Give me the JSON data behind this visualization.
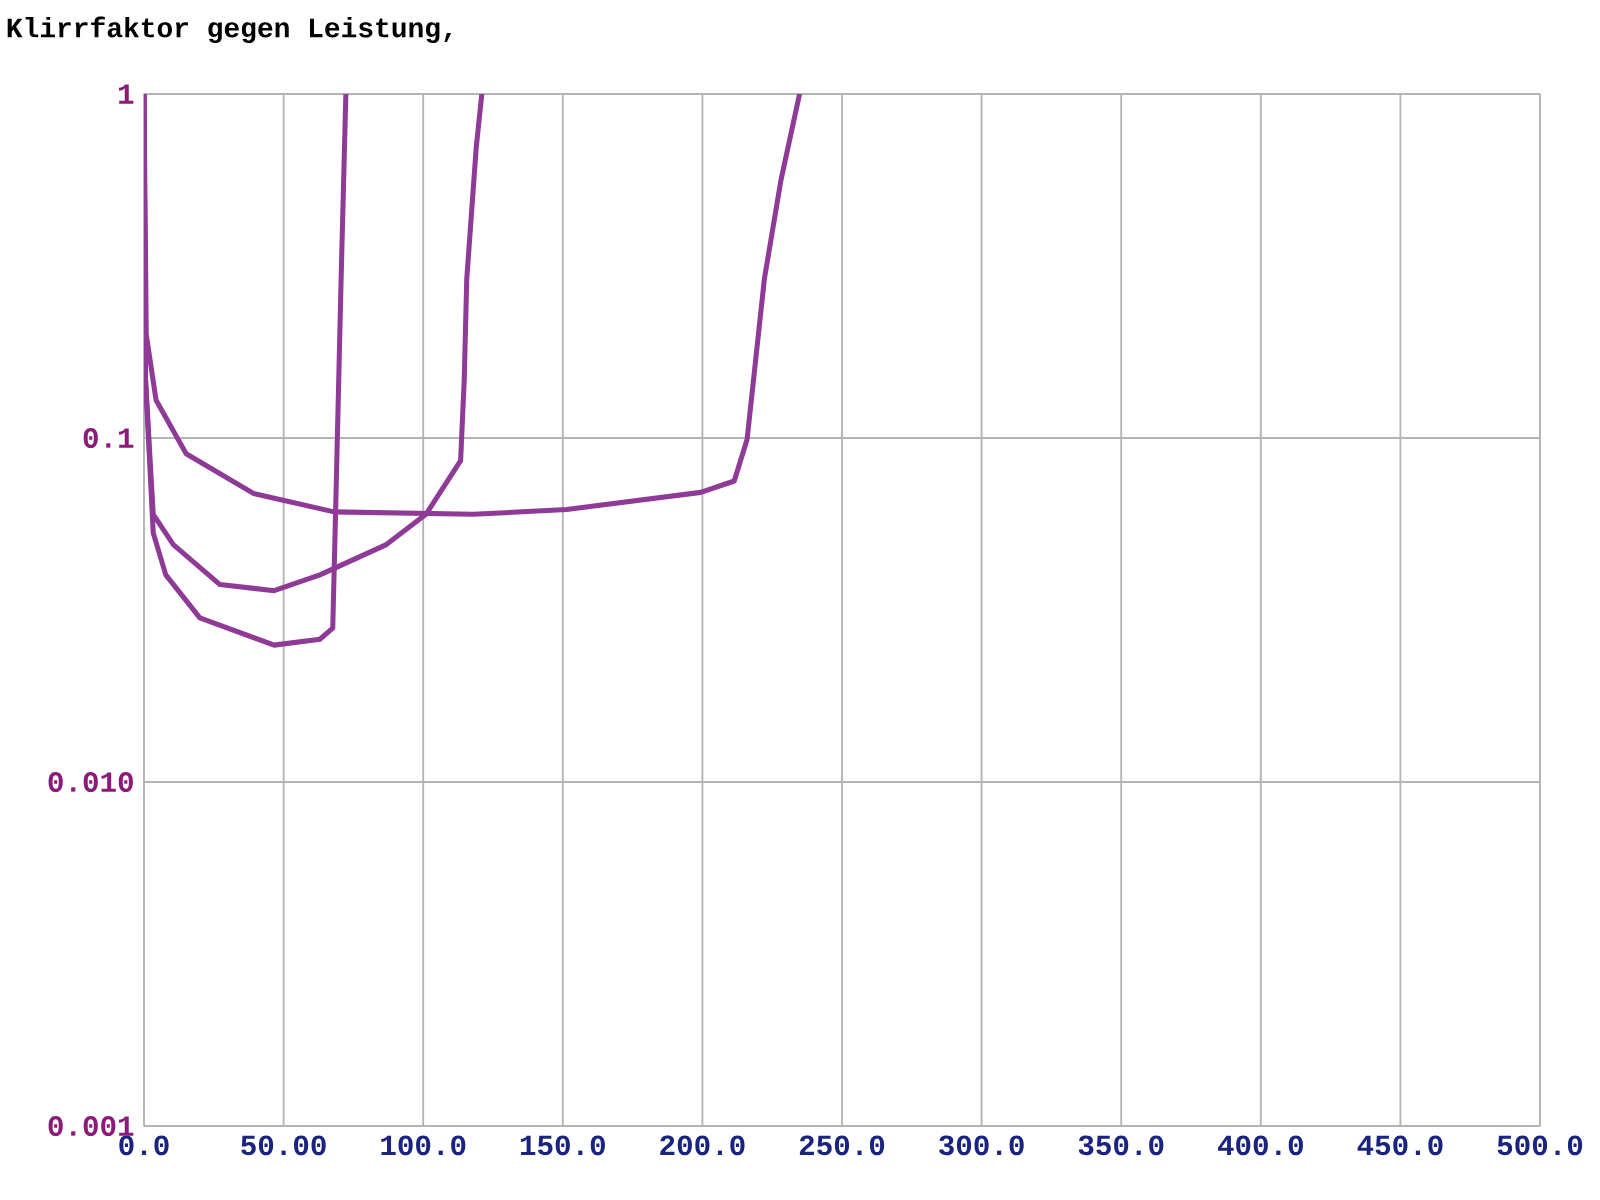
{
  "chart_data": {
    "type": "line",
    "title": "Klirrfaktor gegen Leistung,",
    "series": [
      {
        "color": "#8e3a96",
        "x": [
          0,
          0.5,
          3.3,
          7.8,
          20,
          46.6,
          63,
          67.6,
          68.6,
          70.6,
          72.3
        ],
        "values": [
          1,
          0.15,
          0.053,
          0.04,
          0.03,
          0.025,
          0.026,
          0.028,
          0.06,
          0.29,
          1
        ]
      },
      {
        "color": "#8e3a96",
        "x": [
          0,
          0.5,
          3.3,
          10.5,
          27.2,
          46.6,
          63,
          86.8,
          101,
          113.4,
          114.7,
          115.6,
          119,
          121
        ],
        "values": [
          1,
          0.15,
          0.06,
          0.049,
          0.0375,
          0.036,
          0.04,
          0.049,
          0.06,
          0.086,
          0.148,
          0.29,
          0.7,
          1
        ]
      },
      {
        "color": "#8e3a96",
        "x": [
          0,
          0.8,
          4.3,
          15.1,
          39.2,
          68.1,
          118,
          151.4,
          199.4,
          211.4,
          216,
          222.2,
          228.1,
          234.8
        ],
        "values": [
          1,
          0.2,
          0.129,
          0.09,
          0.069,
          0.061,
          0.06,
          0.062,
          0.0695,
          0.075,
          0.099,
          0.29,
          0.56,
          1
        ]
      }
    ],
    "xlim": [
      0,
      500
    ],
    "ylim": [
      0.001,
      1
    ],
    "xticks": [
      {
        "value": 0,
        "label": "0.0"
      },
      {
        "value": 50,
        "label": "50.00"
      },
      {
        "value": 100,
        "label": "100.0"
      },
      {
        "value": 150,
        "label": "150.0"
      },
      {
        "value": 200,
        "label": "200.0"
      },
      {
        "value": 250,
        "label": "250.0"
      },
      {
        "value": 300,
        "label": "300.0"
      },
      {
        "value": 350,
        "label": "350.0"
      },
      {
        "value": 400,
        "label": "400.0"
      },
      {
        "value": 450,
        "label": "450.0"
      },
      {
        "value": 500,
        "label": "500.0"
      }
    ],
    "yticks": [
      0.001,
      {
        "value": 0.01,
        "label": "0.010"
      },
      0.1,
      1
    ],
    "log": "y",
    "grid": true
  }
}
